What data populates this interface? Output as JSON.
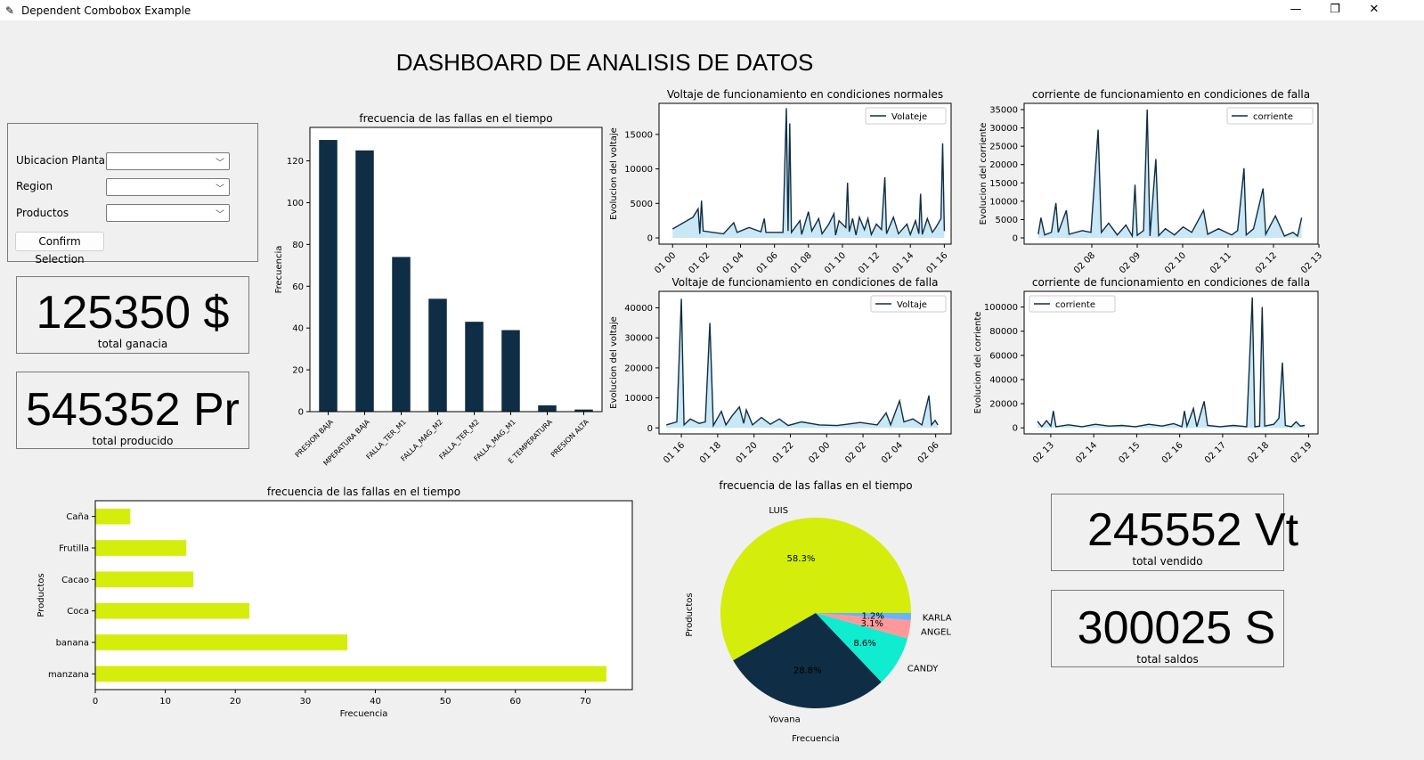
{
  "window": {
    "title": "Dependent Combobox Example",
    "minimize": "—",
    "maximize": "❐",
    "close": "✕"
  },
  "header": {
    "title": "DASHBOARD DE ANALISIS DE DATOS"
  },
  "form": {
    "fields": [
      {
        "label": "Ubicacion Planta:",
        "value": ""
      },
      {
        "label": "Region",
        "value": ""
      },
      {
        "label": "Productos",
        "value": ""
      }
    ],
    "confirm_label": "Confirm Selection"
  },
  "kpis": [
    {
      "value": "125350 $",
      "label": "total ganacia"
    },
    {
      "value": "545352 Pr",
      "label": "total producido"
    },
    {
      "value": "245552 Vt",
      "label": "total vendido"
    },
    {
      "value": "300025 S",
      "label": "total saldos"
    }
  ],
  "colors": {
    "dark": "#0f2d44",
    "fill": "#c9e7f4",
    "yellow": "#d4ed0a"
  },
  "chart_data": [
    {
      "id": "fallas",
      "type": "bar",
      "title": "frecuencia de las fallas en el tiempo",
      "xlabel": "",
      "ylabel": "Frecuencia",
      "ylim": [
        0,
        136
      ],
      "yticks": [
        0,
        20,
        40,
        60,
        80,
        100,
        120
      ],
      "categories": [
        "PRESION BAJA",
        "TEMPERATURA BAJA",
        "FALLA_TER_M1",
        "FALLA_MAG_M2",
        "FALLA_TER_M2",
        "FALLA_MAG_M1",
        "ALTA TEMPERATURA",
        "PRESION ALTA"
      ],
      "category_labels": [
        "PRESION BAJA",
        "MPERATURA BAJA",
        "FALLA_TER_M1",
        "FALLA_MAG_M2",
        "FALLA_TER_M2",
        "FALLA_MAG_M1",
        "E TEMPERATURA",
        "PRESION ALTA"
      ],
      "values": [
        130,
        125,
        74,
        54,
        43,
        39,
        3,
        1
      ]
    },
    {
      "id": "v_normal",
      "type": "area",
      "title": "Voltaje de funcionamiento en condiciones normales",
      "ylabel": "Evolucion del voltaje",
      "legend": "Volateje",
      "legend_position": "upper right",
      "ylim": [
        -900,
        19500
      ],
      "yticks": [
        0,
        5000,
        10000,
        15000
      ],
      "xlim": [
        -0.8,
        16.4
      ],
      "xticks": [
        0,
        2,
        4,
        6,
        8,
        10,
        12,
        14,
        16
      ],
      "xtick_labels": [
        "01 00",
        "01 02",
        "01 04",
        "01 06",
        "01 08",
        "01 10",
        "01 12",
        "01 14",
        "01 16"
      ],
      "points": [
        [
          0,
          1300
        ],
        [
          1.2,
          3000
        ],
        [
          1.5,
          4200
        ],
        [
          1.6,
          600
        ],
        [
          1.7,
          5400
        ],
        [
          1.8,
          1000
        ],
        [
          3,
          600
        ],
        [
          3.6,
          2200
        ],
        [
          3.8,
          800
        ],
        [
          4.5,
          1500
        ],
        [
          5.2,
          900
        ],
        [
          5.4,
          2800
        ],
        [
          5.5,
          800
        ],
        [
          6.5,
          800
        ],
        [
          6.7,
          18800
        ],
        [
          6.8,
          1000
        ],
        [
          6.9,
          16600
        ],
        [
          7,
          800
        ],
        [
          7.5,
          2500
        ],
        [
          7.6,
          500
        ],
        [
          8,
          3800
        ],
        [
          8.2,
          1000
        ],
        [
          8.6,
          2800
        ],
        [
          8.8,
          600
        ],
        [
          9.2,
          2000
        ],
        [
          9.5,
          3500
        ],
        [
          9.6,
          400
        ],
        [
          9.8,
          2500
        ],
        [
          10.2,
          1500
        ],
        [
          10.3,
          8000
        ],
        [
          10.4,
          900
        ],
        [
          10.6,
          2800
        ],
        [
          10.8,
          400
        ],
        [
          11,
          3000
        ],
        [
          11.3,
          1200
        ],
        [
          11.5,
          2800
        ],
        [
          11.7,
          500
        ],
        [
          12,
          2000
        ],
        [
          12.3,
          1200
        ],
        [
          12.5,
          8800
        ],
        [
          12.6,
          600
        ],
        [
          13,
          3000
        ],
        [
          13.3,
          600
        ],
        [
          13.8,
          2000
        ],
        [
          14,
          500
        ],
        [
          14.3,
          2500
        ],
        [
          14.5,
          600
        ],
        [
          14.6,
          6400
        ],
        [
          14.7,
          500
        ],
        [
          15,
          2800
        ],
        [
          15.3,
          800
        ],
        [
          15.5,
          1500
        ],
        [
          15.8,
          2800
        ],
        [
          15.9,
          13700
        ],
        [
          16,
          1000
        ]
      ]
    },
    {
      "id": "c_falla_1",
      "type": "area",
      "title": "corriente de funcionamiento en condiciones de falla",
      "ylabel": "Evolucion del corriente",
      "legend": "corriente",
      "legend_position": "upper right",
      "ylim": [
        -1700,
        36700
      ],
      "yticks": [
        0,
        5000,
        10000,
        15000,
        20000,
        25000,
        30000,
        35000
      ],
      "xlim": [
        6.51,
        12.98
      ],
      "xticks": [
        8,
        9,
        10,
        11,
        12,
        13
      ],
      "xtick_labels": [
        "02 08",
        "02 09",
        "02 10",
        "02 11",
        "02 12",
        "02 13"
      ],
      "points": [
        [
          6.82,
          1000
        ],
        [
          6.88,
          5500
        ],
        [
          6.96,
          800
        ],
        [
          7.11,
          1500
        ],
        [
          7.21,
          9500
        ],
        [
          7.26,
          1500
        ],
        [
          7.44,
          7500
        ],
        [
          7.5,
          1000
        ],
        [
          7.79,
          2000
        ],
        [
          7.98,
          1500
        ],
        [
          8.14,
          29500
        ],
        [
          8.21,
          1500
        ],
        [
          8.37,
          4000
        ],
        [
          8.56,
          800
        ],
        [
          8.75,
          3500
        ],
        [
          8.89,
          500
        ],
        [
          8.95,
          14500
        ],
        [
          9,
          700
        ],
        [
          9.14,
          2000
        ],
        [
          9.22,
          35000
        ],
        [
          9.28,
          500
        ],
        [
          9.41,
          21500
        ],
        [
          9.47,
          600
        ],
        [
          9.62,
          2500
        ],
        [
          9.82,
          800
        ],
        [
          10.01,
          3000
        ],
        [
          10.2,
          1500
        ],
        [
          10.46,
          7500
        ],
        [
          10.55,
          1000
        ],
        [
          10.79,
          2500
        ],
        [
          11.08,
          800
        ],
        [
          11.21,
          2000
        ],
        [
          11.35,
          19000
        ],
        [
          11.4,
          800
        ],
        [
          11.56,
          2500
        ],
        [
          11.77,
          13500
        ],
        [
          11.83,
          1000
        ],
        [
          12.04,
          6000
        ],
        [
          12.24,
          500
        ],
        [
          12.43,
          1500
        ],
        [
          12.53,
          500
        ],
        [
          12.62,
          5500
        ]
      ]
    },
    {
      "id": "v_falla",
      "type": "area",
      "title": "Voltaje de funcionamiento en condiciones de falla",
      "ylabel": "Evolucion del voltaje",
      "legend": "Voltaje",
      "legend_position": "upper right",
      "ylim": [
        -2000,
        45500
      ],
      "yticks": [
        0,
        10000,
        20000,
        30000,
        40000
      ],
      "xlim": [
        14.77,
        30.85
      ],
      "xticks": [
        16,
        18,
        20,
        22,
        24,
        26,
        28,
        30
      ],
      "xtick_labels": [
        "01 16",
        "01 18",
        "01 20",
        "01 22",
        "02 00",
        "02 02",
        "02 04",
        "02 06"
      ],
      "points": [
        [
          15.17,
          1000
        ],
        [
          15.75,
          2000
        ],
        [
          16,
          43000
        ],
        [
          16.15,
          1000
        ],
        [
          16.49,
          3000
        ],
        [
          16.98,
          1500
        ],
        [
          17.32,
          2000
        ],
        [
          17.57,
          35000
        ],
        [
          17.76,
          800
        ],
        [
          18.2,
          5500
        ],
        [
          18.45,
          1000
        ],
        [
          18.79,
          4000
        ],
        [
          19.19,
          7000
        ],
        [
          19.43,
          1500
        ],
        [
          19.58,
          6000
        ],
        [
          19.92,
          1000
        ],
        [
          20.41,
          3500
        ],
        [
          20.9,
          1200
        ],
        [
          21.39,
          3000
        ],
        [
          21.88,
          800
        ],
        [
          22.62,
          2000
        ],
        [
          23.6,
          1000
        ],
        [
          24.58,
          800
        ],
        [
          25.85,
          1800
        ],
        [
          26.78,
          1000
        ],
        [
          27.27,
          5000
        ],
        [
          27.52,
          1000
        ],
        [
          28.01,
          9000
        ],
        [
          28.25,
          2000
        ],
        [
          28.75,
          3000
        ],
        [
          29.24,
          1000
        ],
        [
          29.63,
          10800
        ],
        [
          29.77,
          1000
        ],
        [
          29.97,
          2500
        ],
        [
          30.12,
          1000
        ]
      ]
    },
    {
      "id": "c_falla_2",
      "type": "area",
      "title": "corriente de funcionamiento en condiciones de falla",
      "ylabel": "Evolucion del corriente",
      "legend": "corriente",
      "legend_position": "upper left",
      "ylim": [
        -5000,
        113000
      ],
      "yticks": [
        0,
        20000,
        40000,
        60000,
        80000,
        100000
      ],
      "xlim": [
        12.38,
        19.22
      ],
      "xticks": [
        13,
        14,
        15,
        16,
        17,
        18,
        19
      ],
      "xtick_labels": [
        "02 13",
        "02 14",
        "02 15",
        "02 16",
        "02 17",
        "02 18",
        "02 19"
      ],
      "points": [
        [
          12.69,
          5500
        ],
        [
          12.79,
          1000
        ],
        [
          12.9,
          6000
        ],
        [
          13,
          1500
        ],
        [
          13.06,
          14000
        ],
        [
          13.12,
          1000
        ],
        [
          13.41,
          2500
        ],
        [
          13.73,
          1000
        ],
        [
          14.04,
          3000
        ],
        [
          14.35,
          1500
        ],
        [
          14.66,
          2000
        ],
        [
          14.97,
          1000
        ],
        [
          15.28,
          3000
        ],
        [
          15.59,
          1500
        ],
        [
          15.86,
          3500
        ],
        [
          16.05,
          1000
        ],
        [
          16.11,
          14000
        ],
        [
          16.17,
          1500
        ],
        [
          16.32,
          16000
        ],
        [
          16.4,
          1000
        ],
        [
          16.57,
          22000
        ],
        [
          16.65,
          2000
        ],
        [
          16.94,
          1000
        ],
        [
          17.25,
          2000
        ],
        [
          17.56,
          1000
        ],
        [
          17.69,
          108000
        ],
        [
          17.75,
          1000
        ],
        [
          17.86,
          1500
        ],
        [
          17.92,
          100000
        ],
        [
          17.98,
          1500
        ],
        [
          18.19,
          3000
        ],
        [
          18.31,
          8000
        ],
        [
          18.39,
          54000
        ],
        [
          18.46,
          2000
        ],
        [
          18.6,
          1000
        ],
        [
          18.71,
          5000
        ],
        [
          18.81,
          1500
        ],
        [
          18.91,
          2000
        ]
      ]
    },
    {
      "id": "productos",
      "type": "barh",
      "title": "frecuencia de las fallas en el tiempo",
      "xlabel": "Frecuencia",
      "ylabel": "Productos",
      "xlim": [
        0,
        76.7
      ],
      "xticks": [
        0,
        10,
        20,
        30,
        40,
        50,
        60,
        70
      ],
      "categories": [
        "Caña",
        "Frutilla",
        "Cacao",
        "Coca",
        "banana",
        "manzana"
      ],
      "values": [
        5,
        13,
        14,
        22,
        36,
        73
      ]
    },
    {
      "id": "pie",
      "type": "pie",
      "title": "frecuencia de las fallas en el tiempo",
      "xlabel": "Frecuencia",
      "ylabel": "Productos",
      "labels": [
        "LUIS",
        "Yovana",
        "CANDY",
        "ANGEL",
        "KARLA"
      ],
      "values": [
        58.3,
        28.8,
        8.6,
        3.1,
        1.2
      ],
      "pct_labels": [
        "58.3%",
        "28.8%",
        "8.6%",
        "3.1%",
        "1.2%"
      ],
      "colors": [
        "#d4ed0a",
        "#0f2d44",
        "#10ecd0",
        "#ff9999",
        "#66b3ff"
      ]
    }
  ]
}
